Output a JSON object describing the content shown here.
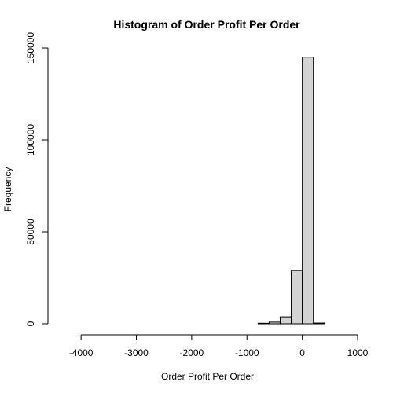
{
  "chart_data": {
    "type": "bar",
    "title": "Histogram of Order Profit Per Order",
    "xlabel": "Order Profit Per Order",
    "ylabel": "Frequency",
    "xlim": [
      -4400,
      1000
    ],
    "ylim": [
      0,
      150000
    ],
    "x_ticks": [
      -4000,
      -3000,
      -2000,
      -1000,
      0,
      1000
    ],
    "y_ticks": [
      0,
      50000,
      100000,
      150000
    ],
    "bin_width": 200,
    "bins": [
      {
        "start": -4400,
        "end": -4200,
        "count": 0
      },
      {
        "start": -4200,
        "end": -4000,
        "count": 0
      },
      {
        "start": -4000,
        "end": -3800,
        "count": 0
      },
      {
        "start": -3800,
        "end": -3600,
        "count": 0
      },
      {
        "start": -3600,
        "end": -3400,
        "count": 0
      },
      {
        "start": -3400,
        "end": -3200,
        "count": 0
      },
      {
        "start": -3200,
        "end": -3000,
        "count": 0
      },
      {
        "start": -3000,
        "end": -2800,
        "count": 0
      },
      {
        "start": -2800,
        "end": -2600,
        "count": 0
      },
      {
        "start": -2600,
        "end": -2400,
        "count": 0
      },
      {
        "start": -2400,
        "end": -2200,
        "count": 0
      },
      {
        "start": -2200,
        "end": -2000,
        "count": 0
      },
      {
        "start": -2000,
        "end": -1800,
        "count": 0
      },
      {
        "start": -1800,
        "end": -1600,
        "count": 0
      },
      {
        "start": -1600,
        "end": -1400,
        "count": 0
      },
      {
        "start": -1400,
        "end": -1200,
        "count": 0
      },
      {
        "start": -1200,
        "end": -1000,
        "count": 0
      },
      {
        "start": -1000,
        "end": -800,
        "count": 0
      },
      {
        "start": -800,
        "end": -600,
        "count": 300
      },
      {
        "start": -600,
        "end": -400,
        "count": 900
      },
      {
        "start": -400,
        "end": -200,
        "count": 3800
      },
      {
        "start": -200,
        "end": 0,
        "count": 29000
      },
      {
        "start": 0,
        "end": 200,
        "count": 145000
      },
      {
        "start": 200,
        "end": 400,
        "count": 400
      }
    ],
    "bar_fill": "#d3d3d3",
    "bar_stroke": "#000000",
    "grid": false,
    "legend": "none"
  }
}
